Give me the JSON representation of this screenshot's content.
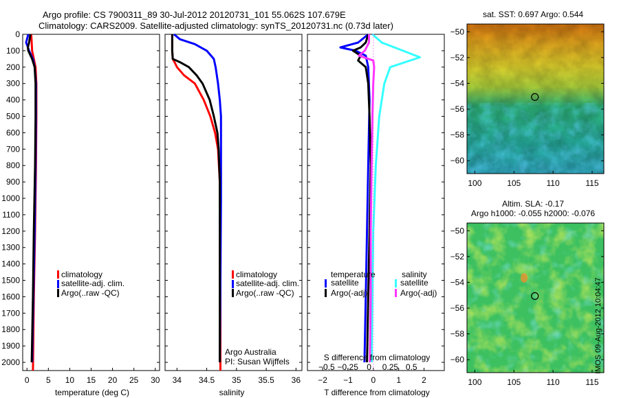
{
  "header": {
    "line1": "Argo profile: CS 7900311_89 30-Jul-2012 20120731_101 55.062S 107.679E",
    "line2": "Climatology: CARS2009. Satellite-adjusted climatology: synTS_20120731.nc (0.73d later)"
  },
  "depth_ticks": [
    "0",
    "100",
    "200",
    "300",
    "400",
    "500",
    "600",
    "700",
    "800",
    "900",
    "1000",
    "1100",
    "1200",
    "1300",
    "1400",
    "1500",
    "1600",
    "1700",
    "1800",
    "1900",
    "2000"
  ],
  "legend_profile": {
    "climatology": "climatology",
    "satellite": "satellite-adj. clim.",
    "argo": "Argo(..raw -QC)"
  },
  "legend_diff": {
    "temperature": "temperature",
    "salinity": "salinity",
    "satellite": "satellite",
    "argo": "Argo(-adj)"
  },
  "credit": {
    "line1": "Argo Australia",
    "line2": "PI: Susan Wijffels"
  },
  "timestamp": "IMOS 09-Aug-2012 10:04:47",
  "colors": {
    "climatology": "#ff0000",
    "satellite": "#0000ff",
    "argo": "#000000",
    "sal_satellite": "#33ffff",
    "sal_argo": "#ff33ff"
  },
  "chart_data": [
    {
      "type": "line",
      "xlabel": "temperature (deg C)",
      "ylabel": "",
      "xlim": [
        -1,
        31
      ],
      "ylim": [
        2050,
        0
      ],
      "xticks": [
        0,
        5,
        10,
        15,
        20,
        25,
        30
      ],
      "series": [
        {
          "name": "climatology",
          "y": [
            0,
            50,
            100,
            150,
            200,
            300,
            500,
            800,
            1200,
            1600,
            2050
          ],
          "x": [
            1.0,
            1.1,
            1.2,
            1.6,
            2.0,
            2.2,
            2.2,
            2.1,
            1.9,
            1.6,
            1.4
          ]
        },
        {
          "name": "satellite-adj. clim.",
          "y": [
            0,
            50,
            70,
            100,
            150,
            200,
            300,
            500,
            800,
            1200,
            1600,
            2000
          ],
          "x": [
            0.3,
            -0.2,
            0.1,
            0.5,
            1.4,
            1.8,
            2.1,
            2.1,
            2.0,
            1.8,
            1.5,
            1.2
          ]
        },
        {
          "name": "Argo(..raw -QC)",
          "y": [
            0,
            50,
            80,
            100,
            150,
            200,
            300,
            500,
            800,
            1200,
            1600,
            2000
          ],
          "x": [
            0.8,
            0.5,
            0.2,
            0.3,
            1.2,
            1.8,
            2.0,
            2.0,
            1.9,
            1.6,
            1.4,
            1.1
          ]
        }
      ]
    },
    {
      "type": "line",
      "xlabel": "salinity",
      "ylabel": "",
      "xlim": [
        33.8,
        36.1
      ],
      "ylim": [
        2050,
        0
      ],
      "xticks": [
        34,
        34.5,
        35,
        35.5,
        36
      ],
      "series": [
        {
          "name": "climatology",
          "y": [
            0,
            50,
            100,
            150,
            170,
            200,
            250,
            300,
            400,
            500,
            600,
            700,
            900,
            1200,
            2050
          ],
          "x": [
            33.92,
            33.92,
            33.92,
            33.93,
            33.96,
            34.0,
            34.12,
            34.3,
            34.45,
            34.56,
            34.64,
            34.69,
            34.72,
            34.73,
            34.73
          ]
        },
        {
          "name": "satellite-adj. clim.",
          "y": [
            0,
            30,
            60,
            100,
            150,
            200,
            300,
            400,
            500,
            600,
            700,
            800,
            1000,
            1500,
            2000
          ],
          "x": [
            33.95,
            34.05,
            34.3,
            34.5,
            34.62,
            34.65,
            34.69,
            34.72,
            34.74,
            34.74,
            34.74,
            34.74,
            34.74,
            34.73,
            34.72
          ]
        },
        {
          "name": "Argo(..raw -QC)",
          "y": [
            0,
            50,
            100,
            150,
            170,
            200,
            250,
            300,
            400,
            500,
            600,
            700,
            900,
            1200,
            2000
          ],
          "x": [
            33.92,
            33.92,
            33.92,
            33.93,
            34.05,
            34.2,
            34.33,
            34.43,
            34.55,
            34.62,
            34.68,
            34.7,
            34.72,
            34.72,
            34.72
          ]
        }
      ]
    },
    {
      "type": "line",
      "xlabel": "T difference from climatology",
      "ylabel": "",
      "xlim": [
        -2.6,
        2.8
      ],
      "ylim": [
        2050,
        0
      ],
      "xticks": [
        -2,
        -1,
        0,
        1,
        2
      ],
      "top_xlabel": "S difference from climatology",
      "top_xticks": [
        -0.5,
        -0.25,
        0,
        0.25,
        0.5
      ],
      "series": [
        {
          "name": "temperature satellite",
          "y": [
            0,
            50,
            80,
            100,
            130,
            200,
            400,
            800,
            1200,
            1600,
            2000
          ],
          "x": [
            -0.2,
            -0.6,
            -1.3,
            -0.7,
            -0.3,
            -0.2,
            -0.15,
            -0.2,
            -0.25,
            -0.3,
            -0.35
          ]
        },
        {
          "name": "temperature Argo(-adj)",
          "y": [
            0,
            50,
            80,
            100,
            130,
            160,
            200,
            300,
            500,
            800,
            1200,
            1600,
            2000
          ],
          "x": [
            -0.2,
            -0.3,
            -0.5,
            -0.8,
            -0.5,
            -0.6,
            -0.3,
            -0.2,
            -0.15,
            -0.1,
            -0.15,
            -0.2,
            -0.25
          ]
        },
        {
          "name": "salinity satellite",
          "y": [
            0,
            50,
            100,
            140,
            200,
            300,
            500,
            800,
            1200,
            1600,
            2000
          ],
          "x": [
            0.04,
            0.15,
            0.4,
            0.6,
            0.25,
            0.18,
            0.12,
            0.08,
            0.05,
            0.04,
            0.03
          ]
        },
        {
          "name": "salinity Argo(-adj)",
          "y": [
            0,
            50,
            100,
            130,
            160,
            200,
            300,
            500,
            800,
            1200,
            1600,
            2000
          ],
          "x": [
            0.0,
            0.0,
            -0.05,
            -0.12,
            0.05,
            0.06,
            0.05,
            0.04,
            0.03,
            0.02,
            0.02,
            0.01
          ]
        }
      ]
    },
    {
      "type": "heatmap",
      "title": "sat. SST: 0.697 Argo: 0.544",
      "xlim": [
        99,
        116.5
      ],
      "ylim": [
        -61,
        -49.4
      ],
      "xticks": [
        100,
        105,
        110,
        115
      ],
      "yticks": [
        -50,
        -52,
        -54,
        -56,
        -58,
        -60
      ],
      "marker": {
        "lon": 107.679,
        "lat": -55.062
      }
    },
    {
      "type": "heatmap",
      "title": "Altim. SLA: -0.17",
      "subtitle": "Argo h1000: -0.055 h2000: -0.076",
      "xlim": [
        99,
        116.5
      ],
      "ylim": [
        -61,
        -49.4
      ],
      "xticks": [
        100,
        105,
        110,
        115
      ],
      "yticks": [
        -50,
        -52,
        -54,
        -56,
        -58,
        -60
      ],
      "marker": {
        "lon": 107.679,
        "lat": -55.062
      }
    }
  ]
}
